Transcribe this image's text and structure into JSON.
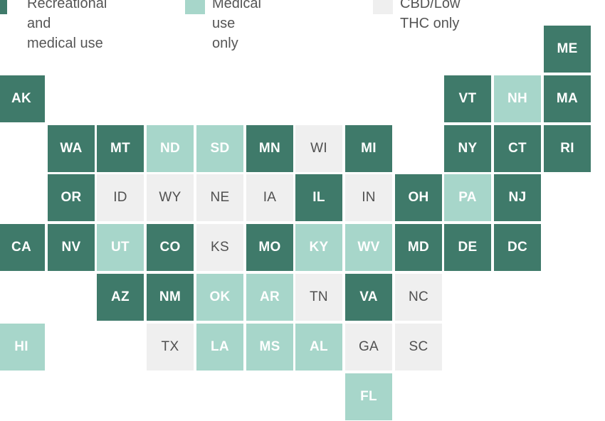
{
  "legend": {
    "items": [
      {
        "key": "rec",
        "label": "Recreational and\nmedical use",
        "color": "#3f7a6a"
      },
      {
        "key": "med",
        "label": "Medical use only",
        "color": "#a7d6ca"
      },
      {
        "key": "cbd",
        "label": "CBD/Low THC only",
        "color": "#efefef"
      }
    ]
  },
  "map": {
    "tiles": [
      {
        "abbr": "ME",
        "status": "rec",
        "row": 0,
        "col": 11
      },
      {
        "abbr": "AK",
        "status": "rec",
        "row": 1,
        "col": 0
      },
      {
        "abbr": "VT",
        "status": "rec",
        "row": 1,
        "col": 9
      },
      {
        "abbr": "NH",
        "status": "med",
        "row": 1,
        "col": 10
      },
      {
        "abbr": "MA",
        "status": "rec",
        "row": 1,
        "col": 11
      },
      {
        "abbr": "WA",
        "status": "rec",
        "row": 2,
        "col": 1
      },
      {
        "abbr": "MT",
        "status": "rec",
        "row": 2,
        "col": 2
      },
      {
        "abbr": "ND",
        "status": "med",
        "row": 2,
        "col": 3
      },
      {
        "abbr": "SD",
        "status": "med",
        "row": 2,
        "col": 4
      },
      {
        "abbr": "MN",
        "status": "rec",
        "row": 2,
        "col": 5
      },
      {
        "abbr": "WI",
        "status": "cbd",
        "row": 2,
        "col": 6
      },
      {
        "abbr": "MI",
        "status": "rec",
        "row": 2,
        "col": 7
      },
      {
        "abbr": "NY",
        "status": "rec",
        "row": 2,
        "col": 9
      },
      {
        "abbr": "CT",
        "status": "rec",
        "row": 2,
        "col": 10
      },
      {
        "abbr": "RI",
        "status": "rec",
        "row": 2,
        "col": 11
      },
      {
        "abbr": "OR",
        "status": "rec",
        "row": 3,
        "col": 1
      },
      {
        "abbr": "ID",
        "status": "cbd",
        "row": 3,
        "col": 2
      },
      {
        "abbr": "WY",
        "status": "cbd",
        "row": 3,
        "col": 3
      },
      {
        "abbr": "NE",
        "status": "cbd",
        "row": 3,
        "col": 4
      },
      {
        "abbr": "IA",
        "status": "cbd",
        "row": 3,
        "col": 5
      },
      {
        "abbr": "IL",
        "status": "rec",
        "row": 3,
        "col": 6
      },
      {
        "abbr": "IN",
        "status": "cbd",
        "row": 3,
        "col": 7
      },
      {
        "abbr": "OH",
        "status": "rec",
        "row": 3,
        "col": 8
      },
      {
        "abbr": "PA",
        "status": "med",
        "row": 3,
        "col": 9
      },
      {
        "abbr": "NJ",
        "status": "rec",
        "row": 3,
        "col": 10
      },
      {
        "abbr": "CA",
        "status": "rec",
        "row": 4,
        "col": 0
      },
      {
        "abbr": "NV",
        "status": "rec",
        "row": 4,
        "col": 1
      },
      {
        "abbr": "UT",
        "status": "med",
        "row": 4,
        "col": 2
      },
      {
        "abbr": "CO",
        "status": "rec",
        "row": 4,
        "col": 3
      },
      {
        "abbr": "KS",
        "status": "cbd",
        "row": 4,
        "col": 4
      },
      {
        "abbr": "MO",
        "status": "rec",
        "row": 4,
        "col": 5
      },
      {
        "abbr": "KY",
        "status": "med",
        "row": 4,
        "col": 6
      },
      {
        "abbr": "WV",
        "status": "med",
        "row": 4,
        "col": 7
      },
      {
        "abbr": "MD",
        "status": "rec",
        "row": 4,
        "col": 8
      },
      {
        "abbr": "DE",
        "status": "rec",
        "row": 4,
        "col": 9
      },
      {
        "abbr": "DC",
        "status": "rec",
        "row": 4,
        "col": 10
      },
      {
        "abbr": "AZ",
        "status": "rec",
        "row": 5,
        "col": 2
      },
      {
        "abbr": "NM",
        "status": "rec",
        "row": 5,
        "col": 3
      },
      {
        "abbr": "OK",
        "status": "med",
        "row": 5,
        "col": 4
      },
      {
        "abbr": "AR",
        "status": "med",
        "row": 5,
        "col": 5
      },
      {
        "abbr": "TN",
        "status": "cbd",
        "row": 5,
        "col": 6
      },
      {
        "abbr": "VA",
        "status": "rec",
        "row": 5,
        "col": 7
      },
      {
        "abbr": "NC",
        "status": "cbd",
        "row": 5,
        "col": 8
      },
      {
        "abbr": "HI",
        "status": "med",
        "row": 6,
        "col": 0
      },
      {
        "abbr": "TX",
        "status": "cbd",
        "row": 6,
        "col": 3
      },
      {
        "abbr": "LA",
        "status": "med",
        "row": 6,
        "col": 4
      },
      {
        "abbr": "MS",
        "status": "med",
        "row": 6,
        "col": 5
      },
      {
        "abbr": "AL",
        "status": "med",
        "row": 6,
        "col": 6
      },
      {
        "abbr": "GA",
        "status": "cbd",
        "row": 6,
        "col": 7
      },
      {
        "abbr": "SC",
        "status": "cbd",
        "row": 6,
        "col": 8
      },
      {
        "abbr": "FL",
        "status": "med",
        "row": 7,
        "col": 7
      }
    ]
  }
}
